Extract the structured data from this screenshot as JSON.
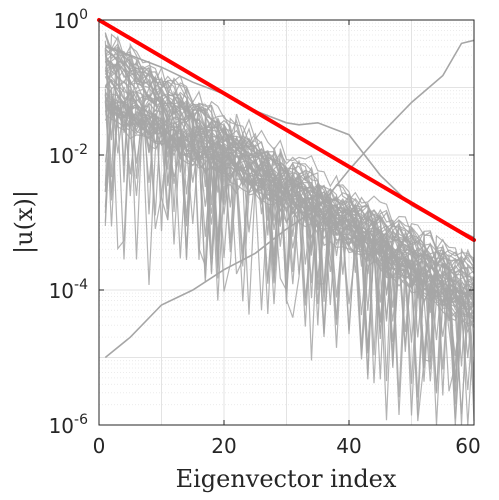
{
  "chart_data": {
    "type": "line",
    "title": "",
    "xlabel": "Eigenvector index",
    "ylabel": "|u(x)|",
    "xlim": [
      0,
      60
    ],
    "ylim": [
      1e-06,
      1
    ],
    "yscale": "log",
    "grid": true,
    "x_ticks": [
      "0",
      "20",
      "40",
      "60"
    ],
    "y_ticks": [
      {
        "base": "10",
        "exp": "-6"
      },
      {
        "base": "10",
        "exp": "-4"
      },
      {
        "base": "10",
        "exp": "-2"
      },
      {
        "base": "10",
        "exp": "0"
      }
    ],
    "bound_line": {
      "color": "#ff0000",
      "x": [
        0,
        60
      ],
      "y": [
        1.0,
        0.00055
      ]
    },
    "bundle": {
      "color": "#a6a6a6",
      "count": 60,
      "x_range": [
        1,
        60
      ],
      "start_y": [
        0.04,
        0.6
      ],
      "typical_end_y": [
        3e-05,
        0.0003
      ]
    },
    "highlight_series": [
      {
        "color": "#a6a6a6",
        "x": [
          1,
          5,
          10,
          15,
          20,
          25,
          30,
          35,
          40,
          45,
          50,
          55,
          58,
          60
        ],
        "y": [
          1e-05,
          2e-05,
          6e-05,
          0.0001,
          0.0002,
          0.00035,
          0.0008,
          0.0016,
          0.006,
          0.02,
          0.06,
          0.15,
          0.45,
          0.5
        ]
      },
      {
        "color": "#a6a6a6",
        "x": [
          1,
          5,
          10,
          15,
          20,
          25,
          30,
          32,
          35,
          40,
          45,
          50,
          55,
          60
        ],
        "y": [
          0.4,
          0.3,
          0.2,
          0.12,
          0.08,
          0.045,
          0.03,
          0.028,
          0.03,
          0.02,
          0.005,
          0.0018,
          0.001,
          0.0006
        ]
      }
    ]
  }
}
